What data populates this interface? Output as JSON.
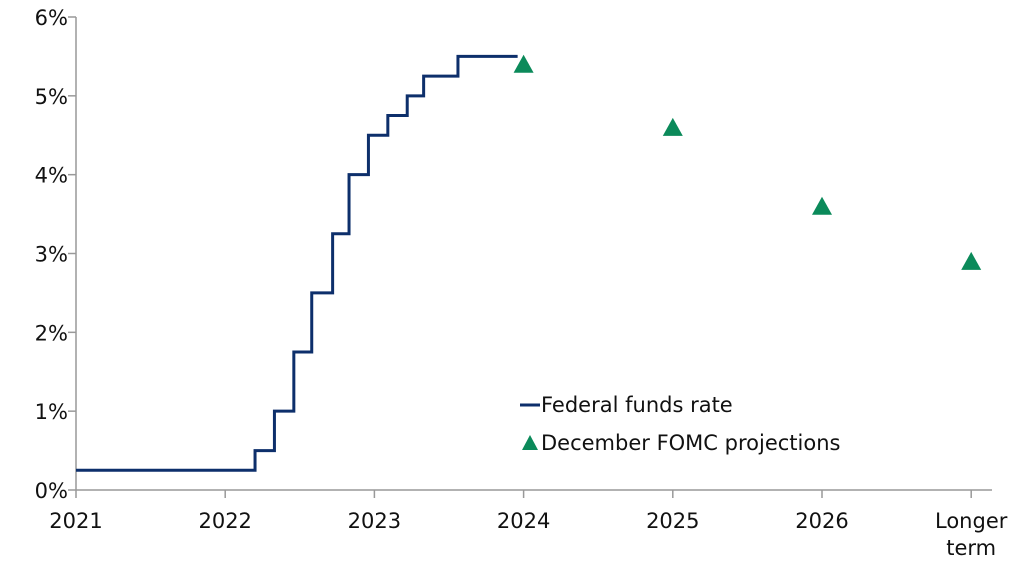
{
  "chart_data": {
    "type": "line",
    "title": "",
    "xlabel": "",
    "ylabel": "",
    "ylim": [
      0,
      6
    ],
    "y_ticks": [
      0,
      1,
      2,
      3,
      4,
      5,
      6
    ],
    "y_tick_labels": [
      "0%",
      "1%",
      "2%",
      "3%",
      "4%",
      "5%",
      "6%"
    ],
    "x_ticks": [
      {
        "pos": 0,
        "label": [
          "2021"
        ]
      },
      {
        "pos": 1,
        "label": [
          "2022"
        ]
      },
      {
        "pos": 2,
        "label": [
          "2023"
        ]
      },
      {
        "pos": 3,
        "label": [
          "2024"
        ]
      },
      {
        "pos": 4,
        "label": [
          "2025"
        ]
      },
      {
        "pos": 5,
        "label": [
          "2026"
        ]
      },
      {
        "pos": 6,
        "label": [
          "Longer",
          "term"
        ]
      }
    ],
    "grid": false,
    "legend_position": "bottom-center",
    "series": [
      {
        "name": "Federal funds rate",
        "type": "step",
        "color": "#0d2f6b",
        "x_units": "years since 2021",
        "points": [
          [
            0.0,
            0.25
          ],
          [
            1.2,
            0.5
          ],
          [
            1.33,
            1.0
          ],
          [
            1.46,
            1.75
          ],
          [
            1.58,
            2.5
          ],
          [
            1.72,
            3.25
          ],
          [
            1.83,
            4.0
          ],
          [
            1.96,
            4.5
          ],
          [
            2.09,
            4.75
          ],
          [
            2.22,
            5.0
          ],
          [
            2.33,
            5.25
          ],
          [
            2.56,
            5.5
          ],
          [
            2.96,
            5.5
          ]
        ]
      },
      {
        "name": "December FOMC projections",
        "type": "marker",
        "marker": "triangle",
        "color": "#0b8a5a",
        "points": [
          [
            3,
            5.4
          ],
          [
            4,
            4.6
          ],
          [
            5,
            3.6
          ],
          [
            6,
            2.9
          ]
        ]
      }
    ]
  }
}
